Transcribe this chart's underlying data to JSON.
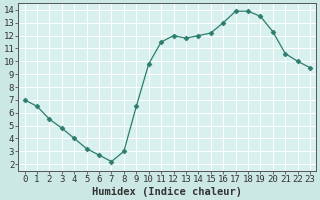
{
  "x": [
    0,
    1,
    2,
    3,
    4,
    5,
    6,
    7,
    8,
    9,
    10,
    11,
    12,
    13,
    14,
    15,
    16,
    17,
    18,
    19,
    20,
    21,
    22,
    23
  ],
  "y": [
    7.0,
    6.5,
    5.5,
    4.8,
    4.0,
    3.2,
    2.7,
    2.2,
    3.0,
    6.5,
    9.8,
    11.5,
    12.0,
    11.8,
    12.0,
    12.2,
    13.0,
    13.9,
    13.9,
    13.5,
    12.3,
    10.6,
    10.0,
    9.5
  ],
  "line_color": "#2d7d6e",
  "marker": "D",
  "marker_size": 2.5,
  "bg_color": "#cce8e4",
  "plot_bg_color": "#d8f0ee",
  "grid_color": "#b0d8d4",
  "xlabel": "Humidex (Indice chaleur)",
  "xlim": [
    -0.5,
    23.5
  ],
  "ylim": [
    1.5,
    14.5
  ],
  "yticks": [
    2,
    3,
    4,
    5,
    6,
    7,
    8,
    9,
    10,
    11,
    12,
    13,
    14
  ],
  "xticks": [
    0,
    1,
    2,
    3,
    4,
    5,
    6,
    7,
    8,
    9,
    10,
    11,
    12,
    13,
    14,
    15,
    16,
    17,
    18,
    19,
    20,
    21,
    22,
    23
  ],
  "tick_fontsize": 6.5,
  "xlabel_fontsize": 7.5,
  "tick_color": "#333333",
  "spine_color": "#555555"
}
